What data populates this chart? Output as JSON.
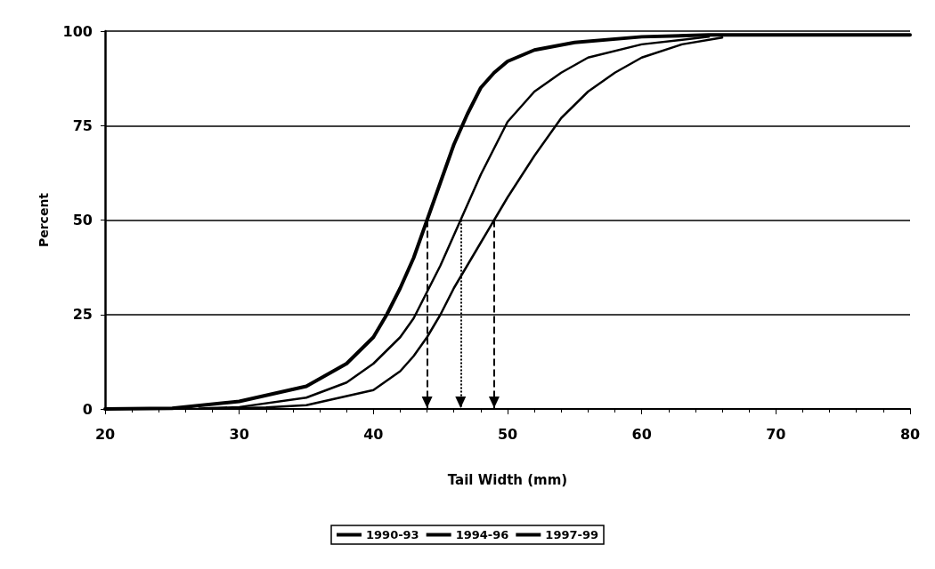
{
  "chart_data": {
    "type": "line",
    "xlabel": "Tail Width (mm)",
    "ylabel": "Percent",
    "xlim": [
      20,
      80
    ],
    "xticks": [
      20,
      30,
      40,
      50,
      60,
      70,
      80
    ],
    "ylim": [
      0,
      100
    ],
    "yticks": [
      0,
      25,
      50,
      75,
      100
    ],
    "grid": "y",
    "legend": "bottom",
    "marker": "none",
    "line_style": "solid",
    "series": [
      {
        "name": "1990-93",
        "color": "#000000",
        "x": [
          20,
          25,
          30,
          35,
          38,
          40,
          41,
          42,
          43,
          44,
          45,
          46,
          47,
          48,
          49,
          50,
          52,
          55,
          60,
          65,
          70,
          80
        ],
        "values": [
          0,
          0.2,
          2,
          6,
          12,
          19,
          25,
          32,
          40,
          50,
          60,
          70,
          78,
          85,
          89,
          92,
          95,
          97,
          98.5,
          99,
          99,
          99
        ]
      },
      {
        "name": "1994-96",
        "color": "#000000",
        "x": [
          27,
          30,
          35,
          38,
          40,
          42,
          43,
          44,
          45,
          46,
          46.5,
          48,
          50,
          52,
          54,
          56,
          60,
          65
        ],
        "values": [
          0.1,
          0.5,
          3,
          7,
          12,
          19,
          24,
          31,
          38,
          46,
          50,
          62,
          76,
          84,
          89,
          93,
          96.5,
          98.5
        ]
      },
      {
        "name": "1997-99",
        "color": "#000000",
        "x": [
          29,
          32,
          35,
          40,
          42,
          43,
          44,
          45,
          46,
          47,
          48,
          49,
          50,
          52,
          54,
          56,
          58,
          60,
          63,
          66
        ],
        "values": [
          0.1,
          0.4,
          1,
          5,
          10,
          14,
          19,
          25,
          32,
          38,
          44,
          50,
          56,
          67,
          77,
          84,
          89,
          93,
          96.5,
          98.3
        ]
      }
    ],
    "ref_lines": [
      {
        "axis": "x",
        "value": 44,
        "color": "#000000",
        "line_style": "dashed"
      },
      {
        "axis": "x",
        "value": 46.5,
        "color": "#000000",
        "line_style": "dotted"
      },
      {
        "axis": "x",
        "value": 49,
        "color": "#000000",
        "line_style": "dashed"
      }
    ]
  }
}
